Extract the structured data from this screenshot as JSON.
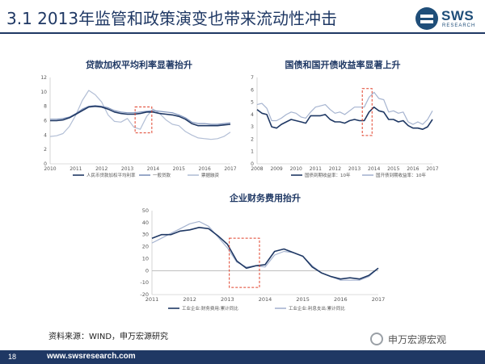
{
  "slide": {
    "title": "3.1 2013年监管和政策演变也带来流动性冲击",
    "source": "资料来源：WIND，申万宏源研究",
    "page_number": "18",
    "footer_url": "www.swsresearch.com",
    "logo_text": "SWS",
    "logo_sub": "RESEARCH",
    "watermark": "申万宏源宏观",
    "colors": {
      "navy": "#1f3864",
      "series_dark": "#1f3864",
      "series_light": "#a6b4d0",
      "highlight": "#e0402a"
    }
  },
  "chart_data": [
    {
      "type": "line",
      "title": "贷款加权平均利率显著抬升",
      "x": [
        2010,
        2010.25,
        2010.5,
        2010.75,
        2011,
        2011.25,
        2011.5,
        2011.75,
        2012,
        2012.25,
        2012.5,
        2012.75,
        2013,
        2013.25,
        2013.5,
        2013.75,
        2014,
        2014.25,
        2014.5,
        2014.75,
        2015,
        2015.25,
        2015.5,
        2015.75,
        2016,
        2016.25,
        2016.5,
        2016.75,
        2017
      ],
      "xlim": [
        2010,
        2017
      ],
      "ylim": [
        0,
        12
      ],
      "x_ticks": [
        "2010",
        "2011",
        "2012",
        "2013",
        "2014",
        "2015",
        "2016",
        "2017"
      ],
      "y_ticks": [
        "0",
        "2",
        "4",
        "6",
        "8",
        "10",
        "12"
      ],
      "series": [
        {
          "name": "人民币贷款加权平均利率",
          "color": "#1f3864",
          "values": [
            6.0,
            6.0,
            6.1,
            6.4,
            6.9,
            7.4,
            7.9,
            8.0,
            7.9,
            7.6,
            7.2,
            7.0,
            6.9,
            6.9,
            7.0,
            7.2,
            7.2,
            7.0,
            6.9,
            6.8,
            6.6,
            6.2,
            5.6,
            5.3,
            5.3,
            5.3,
            5.3,
            5.4,
            5.5
          ]
        },
        {
          "name": "一般贷款",
          "color": "#7f93bb",
          "values": [
            6.2,
            6.2,
            6.3,
            6.5,
            7.0,
            7.6,
            8.0,
            8.1,
            8.0,
            7.8,
            7.4,
            7.2,
            7.1,
            7.1,
            7.2,
            7.3,
            7.4,
            7.3,
            7.2,
            7.1,
            6.8,
            6.4,
            5.8,
            5.6,
            5.6,
            5.5,
            5.5,
            5.6,
            5.7
          ]
        },
        {
          "name": "票据融资",
          "color": "#b3bfd6",
          "values": [
            3.8,
            3.9,
            4.2,
            5.2,
            6.8,
            8.8,
            10.2,
            9.6,
            8.6,
            6.8,
            5.9,
            5.8,
            6.3,
            5.1,
            4.8,
            6.6,
            7.6,
            7.0,
            6.1,
            5.5,
            5.3,
            4.5,
            4.0,
            3.6,
            3.5,
            3.4,
            3.5,
            3.8,
            4.4
          ]
        }
      ],
      "highlight": {
        "x": [
          2013.3,
          2013.95
        ],
        "y": [
          4.3,
          7.9
        ]
      }
    },
    {
      "type": "line",
      "title": "国债和国开债收益率显著上升",
      "x": [
        2008,
        2008.25,
        2008.5,
        2008.75,
        2009,
        2009.25,
        2009.5,
        2009.75,
        2010,
        2010.25,
        2010.5,
        2010.75,
        2011,
        2011.25,
        2011.5,
        2011.75,
        2012,
        2012.25,
        2012.5,
        2012.75,
        2013,
        2013.25,
        2013.5,
        2013.75,
        2014,
        2014.25,
        2014.5,
        2014.75,
        2015,
        2015.25,
        2015.5,
        2015.75,
        2016,
        2016.25,
        2016.5,
        2016.75,
        2017
      ],
      "xlim": [
        2008,
        2017
      ],
      "ylim": [
        0,
        7
      ],
      "x_ticks": [
        "2008",
        "2009",
        "2010",
        "2011",
        "2012",
        "2013",
        "2014",
        "2015",
        "2016",
        "2017"
      ],
      "y_ticks": [
        "0",
        "1",
        "2",
        "3",
        "4",
        "5",
        "6",
        "7"
      ],
      "series": [
        {
          "name": "国债到期收益率：10年",
          "color": "#1f3864",
          "values": [
            4.4,
            4.1,
            4.0,
            3.0,
            2.9,
            3.2,
            3.4,
            3.6,
            3.5,
            3.4,
            3.3,
            3.9,
            3.9,
            3.9,
            4.0,
            3.6,
            3.4,
            3.4,
            3.3,
            3.5,
            3.6,
            3.5,
            3.5,
            4.2,
            4.6,
            4.3,
            4.2,
            3.6,
            3.6,
            3.4,
            3.5,
            3.1,
            2.9,
            2.9,
            2.8,
            3.0,
            3.6
          ]
        },
        {
          "name": "国开债到期收益率：10年",
          "color": "#a6b4d0",
          "values": [
            4.8,
            4.9,
            4.5,
            3.5,
            3.5,
            3.7,
            4.0,
            4.2,
            4.1,
            3.8,
            3.7,
            4.2,
            4.6,
            4.7,
            4.8,
            4.4,
            4.1,
            4.2,
            4.0,
            4.3,
            4.6,
            4.6,
            4.6,
            5.4,
            5.8,
            5.3,
            5.2,
            4.2,
            4.3,
            4.1,
            4.2,
            3.4,
            3.2,
            3.4,
            3.2,
            3.6,
            4.3
          ]
        }
      ],
      "highlight": {
        "x": [
          2013.4,
          2013.9
        ],
        "y": [
          2.3,
          6.1
        ]
      }
    },
    {
      "type": "line",
      "title": "企业财务费用抬升",
      "x": [
        2011,
        2011.25,
        2011.5,
        2011.75,
        2012,
        2012.25,
        2012.5,
        2012.75,
        2013,
        2013.25,
        2013.5,
        2013.75,
        2014,
        2014.25,
        2014.5,
        2014.75,
        2015,
        2015.25,
        2015.5,
        2015.75,
        2016,
        2016.25,
        2016.5,
        2016.75,
        2017
      ],
      "xlim": [
        2011,
        2017
      ],
      "ylim": [
        -20,
        50
      ],
      "x_ticks": [
        "2011",
        "2012",
        "2013",
        "2014",
        "2015",
        "2016",
        "2017"
      ],
      "y_ticks": [
        "-20",
        "-10",
        "0",
        "10",
        "20",
        "30",
        "40",
        "50"
      ],
      "series": [
        {
          "name": "工业企业:财务费用:累计同比",
          "color": "#1f3864",
          "values": [
            27,
            30,
            30,
            33,
            34,
            36,
            35,
            29,
            22,
            8,
            2,
            4,
            5,
            16,
            18,
            15,
            12,
            3,
            -2,
            -5,
            -7,
            -6,
            -7,
            -4,
            2
          ]
        },
        {
          "name": "工业企业:利息支出:累计同比",
          "color": "#a6b4d0",
          "values": [
            23,
            27,
            31,
            35,
            39,
            41,
            37,
            28,
            19,
            7,
            3,
            4,
            3,
            13,
            16,
            15,
            12,
            4,
            -2,
            -5,
            -8,
            -8,
            -8,
            -5,
            2
          ]
        }
      ],
      "highlight": {
        "x": [
          2013.05,
          2013.85
        ],
        "y": [
          -14,
          27
        ]
      }
    }
  ]
}
